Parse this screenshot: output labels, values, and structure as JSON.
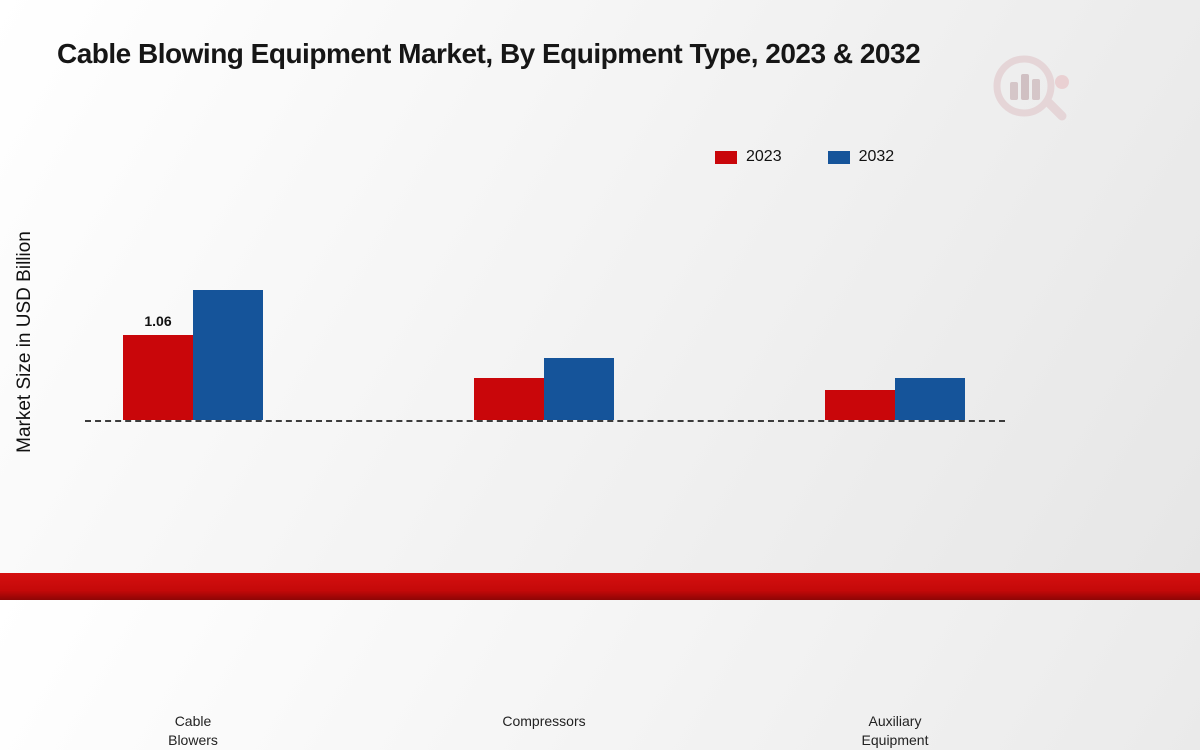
{
  "title": "Cable Blowing Equipment Market, By Equipment Type, 2023 & 2032",
  "ylabel": "Market Size in USD Billion",
  "chart_data": {
    "type": "bar",
    "title": "Cable Blowing Equipment Market, By Equipment Type, 2023 & 2032",
    "xlabel": "",
    "ylabel": "Market Size in USD Billion",
    "ylim": [
      0,
      3.5
    ],
    "grid": false,
    "legend_position": "top-right",
    "baseline_style": "dashed",
    "categories": [
      "Cable Blowers",
      "Compressors",
      "Auxiliary Equipment"
    ],
    "category_label_lines": [
      [
        "Cable",
        "Blowers"
      ],
      [
        "Compressors"
      ],
      [
        "Auxiliary",
        "Equipment"
      ]
    ],
    "series": [
      {
        "name": "2023",
        "color": "#c9060a",
        "values": [
          1.06,
          0.52,
          0.37
        ]
      },
      {
        "name": "2032",
        "color": "#15549a",
        "values": [
          1.62,
          0.77,
          0.53
        ]
      }
    ],
    "data_labels": [
      {
        "series": "2023",
        "category": "Cable Blowers",
        "text": "1.06"
      }
    ]
  },
  "footer": {
    "bar_color": "#c40909"
  },
  "logo": {
    "name": "market-research-future-watermark"
  }
}
